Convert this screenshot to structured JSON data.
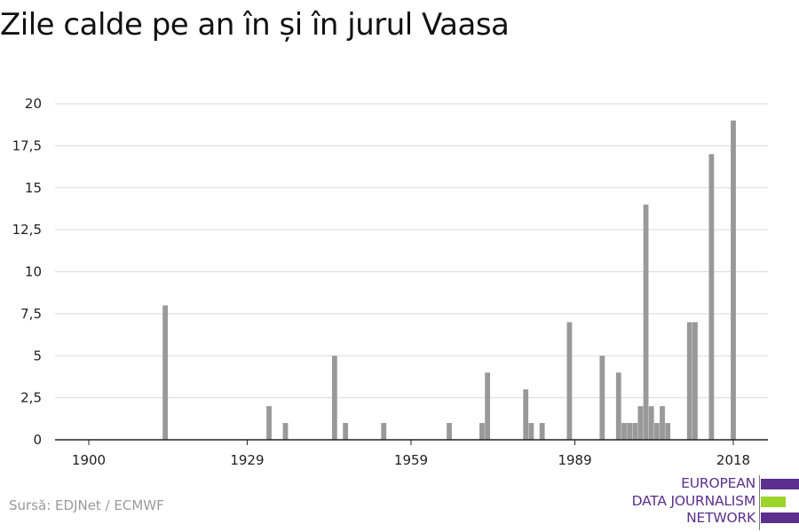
{
  "title": "Zile calde pe an în și în jurul Vaasa",
  "source": "Sursă: EDJNet / ECMWF",
  "logo": {
    "lines": [
      "EUROPEAN",
      "DATA JOURNALISM",
      "NETWORK"
    ],
    "colors": {
      "purple": "#5c2f8e",
      "green": "#9bd42b"
    }
  },
  "colors": {
    "bar": "#999999",
    "grid": "#d9d9d9",
    "axis": "#222222"
  },
  "chart_data": {
    "type": "bar",
    "title": "Zile calde pe an în și în jurul Vaasa",
    "xlabel": "",
    "ylabel": "",
    "x_ticks": [
      1900,
      1929,
      1959,
      1989,
      2018
    ],
    "y_ticks": [
      "0",
      "2,5",
      "5",
      "7,5",
      "10",
      "12,5",
      "15",
      "17,5",
      "20"
    ],
    "ylim": [
      0,
      20
    ],
    "xlim": [
      1900,
      2018
    ],
    "grid": "horizontal",
    "years": [
      1914,
      1933,
      1936,
      1945,
      1947,
      1954,
      1966,
      1972,
      1973,
      1980,
      1981,
      1983,
      1988,
      1994,
      1997,
      1998,
      1999,
      2000,
      2001,
      2002,
      2003,
      2004,
      2005,
      2006,
      2007,
      2010,
      2011,
      2014,
      2018
    ],
    "values": [
      8,
      2,
      1,
      5,
      1,
      1,
      1,
      1,
      4,
      3,
      1,
      1,
      7,
      5,
      4,
      1,
      1,
      1,
      2,
      14,
      2,
      1,
      2,
      1,
      0,
      7,
      7,
      17,
      19
    ]
  }
}
